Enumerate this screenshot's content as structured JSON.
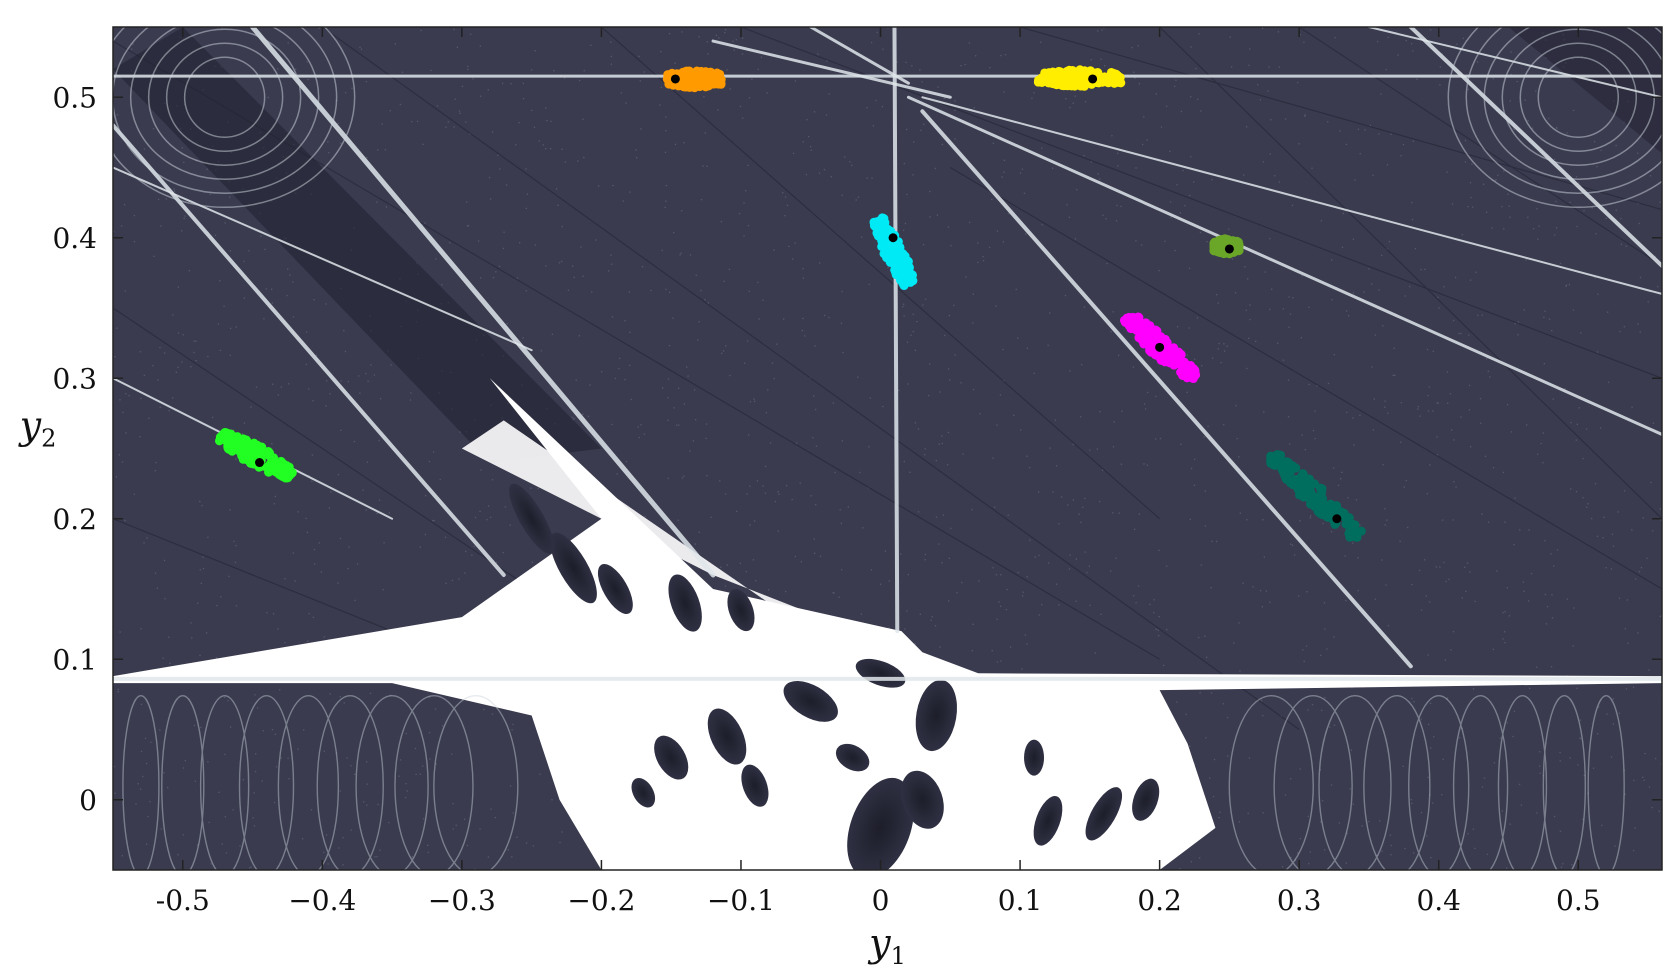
{
  "chart_data": {
    "type": "scatter",
    "title": "",
    "xlabel": "y",
    "xlabel_sub": "1",
    "ylabel": "y",
    "ylabel_sub": "2",
    "xlim": [
      -0.55,
      0.56
    ],
    "ylim": [
      -0.05,
      0.55
    ],
    "xticks": [
      -0.5,
      -0.4,
      -0.3,
      -0.2,
      -0.1,
      0,
      0.1,
      0.2,
      0.3,
      0.4,
      0.5
    ],
    "xtick_labels": [
      "-0.5",
      "−0.4",
      "−0.3",
      "−0.2",
      "−0.1",
      "0",
      "0.1",
      "0.2",
      "0.3",
      "0.4",
      "0.5"
    ],
    "yticks": [
      0,
      0.1,
      0.2,
      0.3,
      0.4,
      0.5
    ],
    "ytick_labels": [
      "0",
      "0.1",
      "0.2",
      "0.3",
      "0.4",
      "0.5"
    ],
    "grid": false,
    "legend": "none",
    "background": {
      "dark_color": "#3a3b4f",
      "light_color": "#ffffff",
      "ridge_color": "#dfe6ea"
    },
    "clusters": [
      {
        "color": "#ff9a00",
        "center": [
          -0.147,
          0.513
        ],
        "extent_x": [
          -0.155,
          -0.112
        ],
        "extent_y": [
          0.506,
          0.52
        ]
      },
      {
        "color": "#ffee00",
        "center": [
          0.152,
          0.513
        ],
        "extent_x": [
          0.11,
          0.175
        ],
        "extent_y": [
          0.507,
          0.52
        ]
      },
      {
        "color": "#00eaf5",
        "center": [
          0.009,
          0.4
        ],
        "extent_x": [
          -0.003,
          0.022
        ],
        "extent_y": [
          0.365,
          0.415
        ]
      },
      {
        "color": "#6aa628",
        "center": [
          0.25,
          0.392
        ],
        "extent_x": [
          0.238,
          0.258
        ],
        "extent_y": [
          0.388,
          0.4
        ]
      },
      {
        "color": "#ff00ff",
        "center": [
          0.2,
          0.322
        ],
        "extent_x": [
          0.175,
          0.227
        ],
        "extent_y": [
          0.298,
          0.346
        ]
      },
      {
        "color": "#22ff22",
        "center": [
          -0.445,
          0.24
        ],
        "extent_x": [
          -0.475,
          -0.42
        ],
        "extent_y": [
          0.23,
          0.26
        ]
      },
      {
        "color": "#006e5e",
        "center": [
          0.327,
          0.2
        ],
        "extent_x": [
          0.277,
          0.345
        ],
        "extent_y": [
          0.185,
          0.248
        ]
      }
    ]
  }
}
